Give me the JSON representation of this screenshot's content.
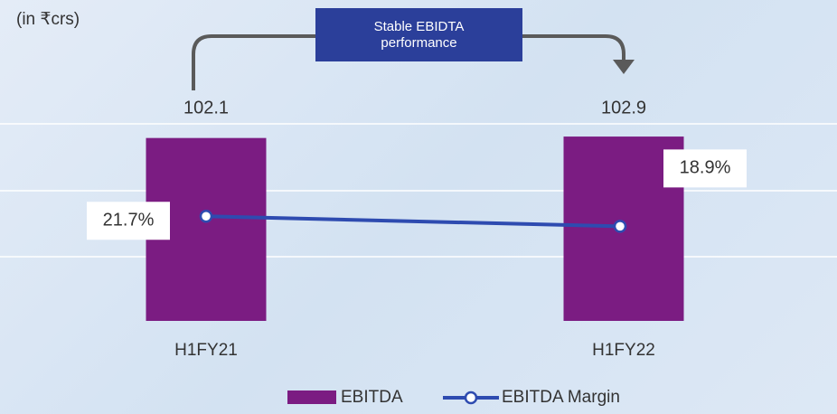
{
  "chart_data": {
    "type": "bar",
    "subtitle": "(in ₹crs)",
    "annotation": "Stable EBIDTA performance",
    "categories": [
      "H1FY21",
      "H1FY22"
    ],
    "ylim": [
      0,
      110
    ],
    "y2lim": [
      -7.5,
      47.5
    ],
    "series": [
      {
        "name": "EBITDA",
        "type": "bar",
        "color": "#7b1c82",
        "values": [
          102.1,
          102.9
        ]
      },
      {
        "name": "EBITDA Margin",
        "type": "line",
        "axis": "y2",
        "color": "#2e4bb0",
        "values": [
          21.7,
          18.9
        ],
        "value_labels": [
          "21.7%",
          "18.9%"
        ]
      }
    ]
  }
}
